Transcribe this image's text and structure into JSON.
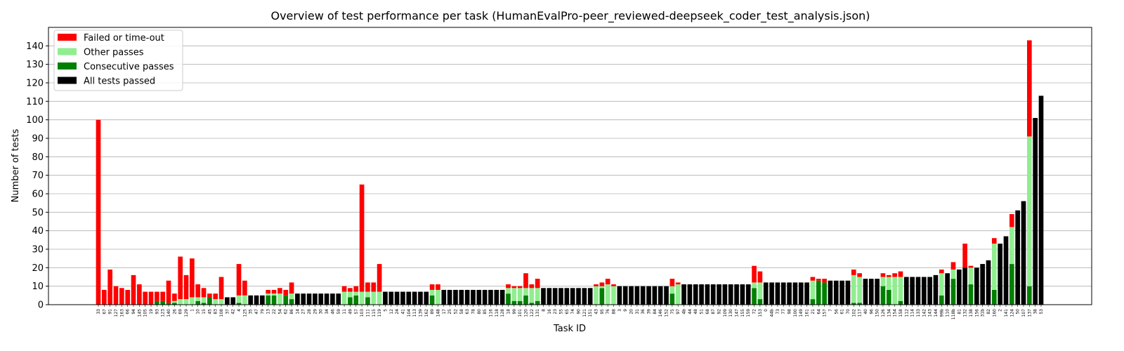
{
  "chart_data": {
    "type": "bar",
    "stacked": true,
    "title": "Overview of test performance per task (HumanEvalPro-peer_reviewed-deepseek_coder_test_analysis.json)",
    "xlabel": "Task ID",
    "ylabel": "Number of tests",
    "ylim": [
      0,
      150
    ],
    "yticks": [
      0,
      10,
      20,
      30,
      40,
      50,
      60,
      70,
      80,
      90,
      100,
      110,
      120,
      130,
      140
    ],
    "grid": "horizontal",
    "legend_position": "top-left",
    "colors": {
      "failed": "#ff0000",
      "other": "#90ee90",
      "consecutive": "#008000",
      "all_passed": "#000000"
    },
    "legend": [
      {
        "key": "failed",
        "label": "Failed or time-out"
      },
      {
        "key": "other",
        "label": "Other passes"
      },
      {
        "key": "consecutive",
        "label": "Consecutive passes"
      },
      {
        "key": "all_passed",
        "label": "All tests passed"
      }
    ],
    "categories": [
      "33",
      "67",
      "91",
      "127",
      "163",
      "66",
      "94",
      "145",
      "105",
      "19",
      "93",
      "123",
      "140",
      "26",
      "69",
      "129",
      "1",
      "10",
      "15",
      "45",
      "83",
      "108",
      "37",
      "42",
      "4",
      "125",
      "35",
      "47",
      "79",
      "13",
      "22",
      "54",
      "62",
      "86",
      "14",
      "27",
      "28",
      "29",
      "30",
      "34",
      "46",
      "59",
      "11",
      "49",
      "57",
      "103",
      "111",
      "115",
      "119",
      "5",
      "12",
      "24",
      "41",
      "104",
      "113",
      "139",
      "162",
      "89",
      "148",
      "17",
      "25",
      "52",
      "58",
      "63",
      "78",
      "80",
      "85",
      "116",
      "118",
      "128",
      "18",
      "99",
      "101",
      "120",
      "122",
      "131",
      "8",
      "16",
      "23",
      "55",
      "65",
      "74",
      "90",
      "121",
      "151",
      "43",
      "95",
      "76",
      "88",
      "3",
      "9",
      "20",
      "31",
      "36",
      "39",
      "84",
      "146",
      "152",
      "75",
      "97",
      "4b",
      "44",
      "48",
      "51",
      "68",
      "87",
      "92",
      "109",
      "130",
      "147",
      "155",
      "159",
      "72",
      "153",
      "0",
      "44b",
      "73",
      "77",
      "98",
      "100",
      "149",
      "161",
      "21",
      "64",
      "157",
      "7",
      "56",
      "61",
      "70",
      "102",
      "117",
      "40",
      "96",
      "150",
      "126",
      "134",
      "154",
      "158",
      "112",
      "114",
      "133",
      "142",
      "143",
      "144",
      "99b",
      "110",
      "118b",
      "81",
      "132",
      "138",
      "156",
      "31b",
      "82",
      "160",
      "2",
      "141",
      "124",
      "50",
      "107",
      "137",
      "38",
      "53"
    ],
    "series": [
      {
        "name": "Consecutive passes",
        "key": "consecutive",
        "values": [
          0,
          0,
          0,
          0,
          0,
          0,
          0,
          0,
          0,
          0,
          2,
          2,
          1,
          1,
          0,
          0,
          0,
          2,
          1,
          4,
          0,
          0,
          0,
          0,
          1,
          0,
          0,
          0,
          0,
          5,
          5,
          0,
          5,
          3,
          0,
          0,
          0,
          0,
          0,
          0,
          0,
          0,
          0,
          4,
          5,
          0,
          4,
          0,
          0,
          0,
          0,
          0,
          0,
          0,
          0,
          0,
          0,
          5,
          0,
          0,
          0,
          0,
          0,
          0,
          0,
          0,
          0,
          0,
          0,
          0,
          6,
          2,
          2,
          5,
          1,
          2,
          0,
          0,
          0,
          0,
          0,
          0,
          0,
          0,
          0,
          0,
          9,
          0,
          0,
          0,
          0,
          0,
          0,
          0,
          0,
          0,
          0,
          0,
          6,
          0,
          0,
          0,
          0,
          0,
          0,
          0,
          0,
          0,
          0,
          0,
          0,
          0,
          9,
          3,
          0,
          0,
          0,
          0,
          0,
          0,
          0,
          0,
          3,
          13,
          12,
          0,
          0,
          0,
          0,
          1,
          1,
          0,
          0,
          0,
          10,
          8,
          0,
          2,
          0,
          0,
          0,
          0,
          0,
          0,
          5,
          0,
          14,
          0,
          0,
          11,
          0,
          0,
          0,
          8,
          0,
          0,
          22,
          0,
          0,
          10,
          0,
          0
        ]
      },
      {
        "name": "Other passes",
        "key": "other",
        "values": [
          0,
          0,
          0,
          0,
          0,
          0,
          0,
          0,
          0,
          0,
          0,
          0,
          0,
          1,
          3,
          3,
          4,
          2,
          3,
          0,
          3,
          3,
          0,
          0,
          4,
          5,
          0,
          0,
          0,
          1,
          1,
          6,
          0,
          3,
          0,
          0,
          0,
          0,
          0,
          0,
          0,
          0,
          7,
          3,
          2,
          7,
          3,
          7,
          7,
          0,
          0,
          0,
          0,
          0,
          0,
          0,
          0,
          3,
          8,
          0,
          0,
          0,
          0,
          0,
          0,
          0,
          0,
          0,
          0,
          0,
          3,
          7,
          7,
          4,
          8,
          7,
          0,
          0,
          0,
          0,
          0,
          0,
          0,
          0,
          0,
          10,
          1,
          11,
          10,
          0,
          0,
          0,
          0,
          0,
          0,
          0,
          0,
          0,
          4,
          11,
          0,
          0,
          0,
          0,
          0,
          0,
          0,
          0,
          0,
          0,
          0,
          0,
          3,
          9,
          0,
          0,
          0,
          0,
          0,
          0,
          0,
          0,
          10,
          0,
          0,
          0,
          0,
          0,
          0,
          15,
          14,
          0,
          0,
          0,
          5,
          7,
          15,
          13,
          0,
          0,
          0,
          0,
          0,
          0,
          12,
          0,
          5,
          0,
          0,
          9,
          0,
          0,
          0,
          25,
          0,
          0,
          20,
          0,
          0,
          81,
          0,
          0
        ]
      },
      {
        "name": "All tests passed",
        "key": "all_passed",
        "values": [
          0,
          0,
          0,
          0,
          0,
          0,
          0,
          0,
          0,
          0,
          0,
          0,
          0,
          0,
          0,
          0,
          0,
          0,
          0,
          0,
          0,
          0,
          4,
          4,
          0,
          0,
          5,
          5,
          5,
          0,
          0,
          0,
          0,
          0,
          6,
          6,
          6,
          6,
          6,
          6,
          6,
          6,
          0,
          0,
          0,
          0,
          0,
          0,
          0,
          7,
          7,
          7,
          7,
          7,
          7,
          7,
          7,
          0,
          0,
          8,
          8,
          8,
          8,
          8,
          8,
          8,
          8,
          8,
          8,
          8,
          0,
          0,
          0,
          0,
          0,
          0,
          9,
          9,
          9,
          9,
          9,
          9,
          9,
          9,
          9,
          0,
          0,
          0,
          0,
          10,
          10,
          10,
          10,
          10,
          10,
          10,
          10,
          10,
          0,
          0,
          11,
          11,
          11,
          11,
          11,
          11,
          11,
          11,
          11,
          11,
          11,
          11,
          0,
          0,
          12,
          12,
          12,
          12,
          12,
          12,
          12,
          12,
          0,
          0,
          0,
          13,
          13,
          13,
          13,
          0,
          0,
          14,
          14,
          14,
          0,
          0,
          0,
          0,
          15,
          15,
          15,
          15,
          15,
          16,
          0,
          17,
          0,
          19,
          20,
          0,
          20,
          22,
          24,
          0,
          33,
          37,
          0,
          51,
          56,
          0,
          101,
          113
        ]
      },
      {
        "name": "Failed or time-out",
        "key": "failed",
        "values": [
          100,
          8,
          19,
          10,
          9,
          8,
          16,
          11,
          7,
          7,
          5,
          5,
          12,
          4,
          23,
          13,
          21,
          7,
          5,
          2,
          3,
          12,
          0,
          0,
          17,
          8,
          0,
          0,
          0,
          2,
          2,
          3,
          3,
          6,
          0,
          0,
          0,
          0,
          0,
          0,
          0,
          0,
          3,
          2,
          3,
          58,
          5,
          5,
          15,
          0,
          0,
          0,
          0,
          0,
          0,
          0,
          0,
          3,
          3,
          0,
          0,
          0,
          0,
          0,
          0,
          0,
          0,
          0,
          0,
          0,
          2,
          1,
          1,
          8,
          2,
          5,
          0,
          0,
          0,
          0,
          0,
          0,
          0,
          0,
          0,
          1,
          2,
          3,
          1,
          0,
          0,
          0,
          0,
          0,
          0,
          0,
          0,
          0,
          4,
          1,
          0,
          0,
          0,
          0,
          0,
          0,
          0,
          0,
          0,
          0,
          0,
          0,
          9,
          6,
          0,
          0,
          0,
          0,
          0,
          0,
          0,
          0,
          2,
          1,
          2,
          0,
          0,
          0,
          0,
          3,
          2,
          0,
          0,
          0,
          2,
          1,
          2,
          3,
          0,
          0,
          0,
          0,
          0,
          0,
          2,
          0,
          4,
          0,
          13,
          1,
          0,
          0,
          0,
          3,
          0,
          0,
          7,
          0,
          0,
          52,
          0,
          0
        ]
      }
    ]
  }
}
